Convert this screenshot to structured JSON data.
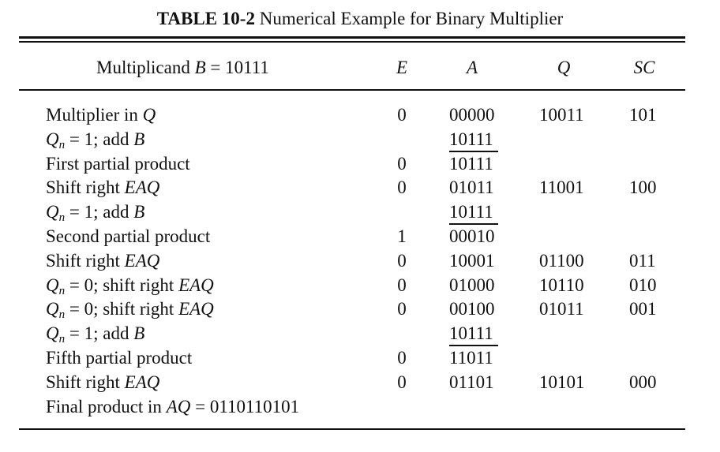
{
  "caption": {
    "label": "TABLE 10-2",
    "title": "Numerical Example for Binary Multiplier"
  },
  "header": {
    "multiplicand_prefix": "Multiplicand",
    "multiplicand_var": "B",
    "multiplicand_value": "= 10111",
    "col_e": "E",
    "col_a": "A",
    "col_q": "Q",
    "col_sc": "SC"
  },
  "rows": [
    {
      "pre": "Multiplier in ",
      "var": "Q",
      "post": "",
      "e": "0",
      "a": "00000",
      "q": "10011",
      "sc": "101"
    },
    {
      "pre": "Q",
      "sub": "n",
      "mid": " = 1; add ",
      "var": "B",
      "post": "",
      "e": "",
      "a": "10111",
      "q": "",
      "sc": ""
    },
    {
      "pre": "First partial product",
      "var": "",
      "post": "",
      "e": "0",
      "a": "10111",
      "q": "",
      "sc": ""
    },
    {
      "pre": "Shift right ",
      "var": "EAQ",
      "post": "",
      "e": "0",
      "a": "01011",
      "q": "11001",
      "sc": "100"
    },
    {
      "pre": "Q",
      "sub": "n",
      "mid": " = 1; add ",
      "var": "B",
      "post": "",
      "e": "",
      "a": "10111",
      "q": "",
      "sc": ""
    },
    {
      "pre": "Second partial product",
      "var": "",
      "post": "",
      "e": "1",
      "a": "00010",
      "q": "",
      "sc": ""
    },
    {
      "pre": "Shift right ",
      "var": "EAQ",
      "post": "",
      "e": "0",
      "a": "10001",
      "q": "01100",
      "sc": "011"
    },
    {
      "pre": "Q",
      "sub": "n",
      "mid": " = 0; shift right ",
      "var": "EAQ",
      "post": "",
      "e": "0",
      "a": "01000",
      "q": "10110",
      "sc": "010"
    },
    {
      "pre": "Q",
      "sub": "n",
      "mid": " = 0; shift right ",
      "var": "EAQ",
      "post": "",
      "e": "0",
      "a": "00100",
      "q": "01011",
      "sc": "001"
    },
    {
      "pre": "Q",
      "sub": "n",
      "mid": " = 1; add ",
      "var": "B",
      "post": "",
      "e": "",
      "a": "10111",
      "q": "",
      "sc": ""
    },
    {
      "pre": "Fifth partial product",
      "var": "",
      "post": "",
      "e": "0",
      "a": "11011",
      "q": "",
      "sc": ""
    },
    {
      "pre": "Shift right ",
      "var": "EAQ",
      "post": "",
      "e": "0",
      "a": "01101",
      "q": "10101",
      "sc": "000"
    },
    {
      "pre": "Final product in ",
      "var": "AQ",
      "post": " = 0110110101",
      "e": "",
      "a": "",
      "q": "",
      "sc": ""
    }
  ]
}
